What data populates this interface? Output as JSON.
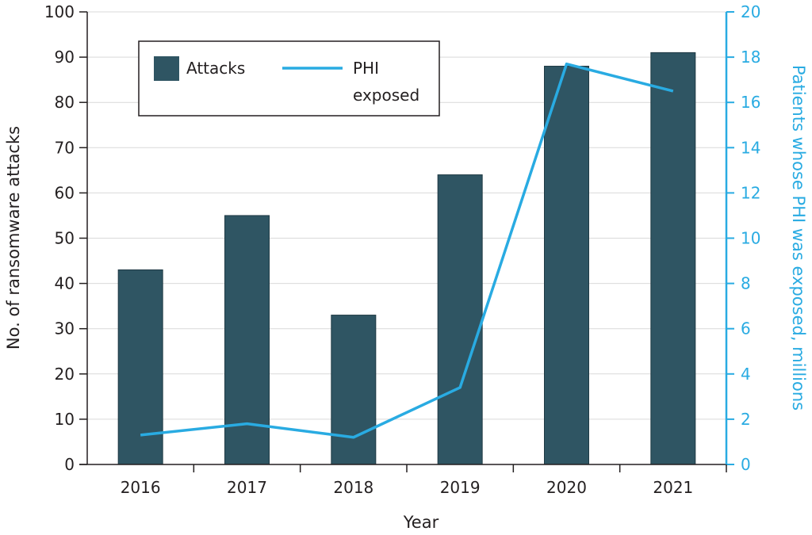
{
  "chart_data": {
    "type": "bar",
    "categories": [
      "2016",
      "2017",
      "2018",
      "2019",
      "2020",
      "2021"
    ],
    "xlabel": "Year",
    "ylabel": "No. of ransomware attacks",
    "ylabel_right": "Patients whose PHI was exposed, millions",
    "ylim": [
      0,
      100
    ],
    "ylim_right": [
      0,
      20
    ],
    "yticks": [
      0,
      10,
      20,
      30,
      40,
      50,
      60,
      70,
      80,
      90,
      100
    ],
    "yticks_right": [
      0,
      2,
      4,
      6,
      8,
      10,
      12,
      14,
      16,
      18,
      20
    ],
    "grid": "horizontal",
    "legend_position": "top-left",
    "series": [
      {
        "name": "Attacks",
        "type": "bar",
        "axis": "left",
        "color": "#2f5563",
        "values": [
          43,
          55,
          33,
          64,
          88,
          91
        ]
      },
      {
        "name": "PHI exposed",
        "legend_lines": [
          "PHI",
          "exposed"
        ],
        "type": "line",
        "axis": "right",
        "color": "#29abe2",
        "values": [
          1.3,
          1.8,
          1.2,
          3.4,
          17.7,
          16.5
        ]
      }
    ]
  }
}
